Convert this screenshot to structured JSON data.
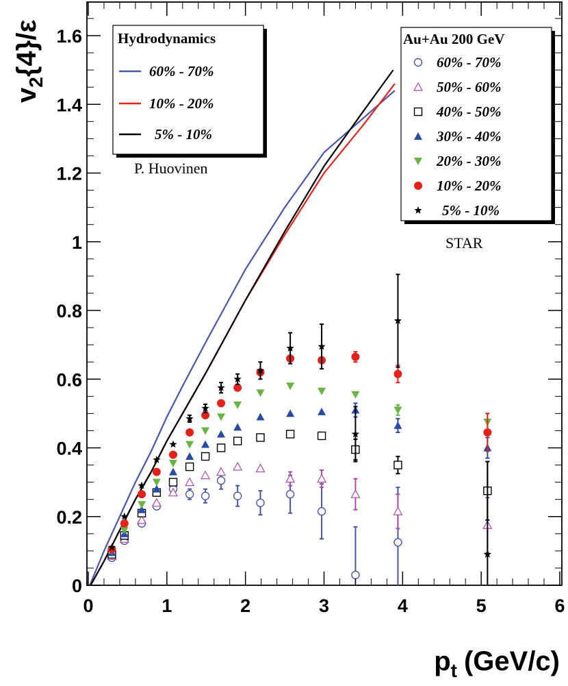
{
  "chart_data": {
    "type": "scatter",
    "xlabel": "p",
    "xlabel_sub": "t",
    "xlabel_units": "(GeV/c)",
    "ylabel_main": "v",
    "ylabel_sub": "2",
    "ylabel_rest": "{4}/ε",
    "xlim": [
      0,
      6
    ],
    "ylim": [
      0,
      1.7
    ],
    "x_ticks": [
      "0",
      "1",
      "2",
      "3",
      "4",
      "5",
      "6"
    ],
    "y_ticks": [
      "0",
      "0.2",
      "0.4",
      "0.6",
      "0.8",
      "1",
      "1.2",
      "1.4",
      "1.6"
    ],
    "grid": false,
    "legend_hydro": {
      "title": "Hydrodynamics",
      "placement": "top-left",
      "entries": [
        "60% - 70%",
        "10% - 20%",
        "5% - 10%"
      ]
    },
    "hydro_credit": "P. Huovinen",
    "legend_data": {
      "title": "Au+Au 200 GeV",
      "placement": "top-right",
      "entries": [
        "60% - 70%",
        "50% - 60%",
        "40% - 50%",
        "30% - 40%",
        "20% - 30%",
        "10% - 20%",
        "5% - 10%"
      ]
    },
    "data_credit": "STAR",
    "curves": [
      {
        "name": "60% - 70%",
        "color": "#4a55a8",
        "points": [
          [
            0.02,
            0
          ],
          [
            0.2,
            0.1
          ],
          [
            0.4,
            0.2
          ],
          [
            0.6,
            0.3
          ],
          [
            0.8,
            0.39
          ],
          [
            1.0,
            0.49
          ],
          [
            1.2,
            0.58
          ],
          [
            1.5,
            0.71
          ],
          [
            2.0,
            0.92
          ],
          [
            2.5,
            1.1
          ],
          [
            3.0,
            1.26
          ],
          [
            3.5,
            1.36
          ],
          [
            3.9,
            1.44
          ]
        ]
      },
      {
        "name": "10% - 20%",
        "color": "#e4221b",
        "points": [
          [
            0.03,
            0
          ],
          [
            0.2,
            0.07
          ],
          [
            0.4,
            0.16
          ],
          [
            0.6,
            0.25
          ],
          [
            0.8,
            0.33
          ],
          [
            1.0,
            0.42
          ],
          [
            1.2,
            0.5
          ],
          [
            1.5,
            0.62
          ],
          [
            2.0,
            0.83
          ],
          [
            2.5,
            1.02
          ],
          [
            3.0,
            1.2
          ],
          [
            3.5,
            1.34
          ],
          [
            3.9,
            1.46
          ]
        ]
      },
      {
        "name": "5% - 10%",
        "color": "#000000",
        "points": [
          [
            0.03,
            0
          ],
          [
            0.2,
            0.07
          ],
          [
            0.4,
            0.16
          ],
          [
            0.6,
            0.25
          ],
          [
            0.8,
            0.33
          ],
          [
            1.0,
            0.42
          ],
          [
            1.2,
            0.5
          ],
          [
            1.5,
            0.62
          ],
          [
            2.0,
            0.83
          ],
          [
            2.5,
            1.03
          ],
          [
            3.0,
            1.22
          ],
          [
            3.5,
            1.38
          ],
          [
            3.88,
            1.5
          ]
        ]
      }
    ],
    "series": [
      {
        "name": "60% - 70%",
        "marker": "open-circle",
        "color": "#4a55a8",
        "points": [
          {
            "x": 0.3,
            "y": 0.08
          },
          {
            "x": 0.46,
            "y": 0.13
          },
          {
            "x": 0.68,
            "y": 0.18
          },
          {
            "x": 0.87,
            "y": 0.23
          },
          {
            "x": 1.08,
            "y": 0.28
          },
          {
            "x": 1.29,
            "y": 0.265,
            "e": 0.015
          },
          {
            "x": 1.49,
            "y": 0.26,
            "e": 0.02
          },
          {
            "x": 1.69,
            "y": 0.305,
            "e": 0.025
          },
          {
            "x": 1.9,
            "y": 0.26,
            "e": 0.03
          },
          {
            "x": 2.19,
            "y": 0.24,
            "e": 0.035
          },
          {
            "x": 2.57,
            "y": 0.265,
            "e": 0.055
          },
          {
            "x": 2.97,
            "y": 0.215,
            "e": 0.08
          },
          {
            "x": 3.4,
            "y": 0.03,
            "e": 0.14
          },
          {
            "x": 3.94,
            "y": 0.125,
            "e": 0.16
          }
        ]
      },
      {
        "name": "50% - 60%",
        "marker": "open-triangle",
        "color": "#b04aa8",
        "points": [
          {
            "x": 0.3,
            "y": 0.085
          },
          {
            "x": 0.46,
            "y": 0.135
          },
          {
            "x": 0.68,
            "y": 0.19
          },
          {
            "x": 0.87,
            "y": 0.24
          },
          {
            "x": 1.08,
            "y": 0.27
          },
          {
            "x": 1.29,
            "y": 0.3
          },
          {
            "x": 1.49,
            "y": 0.32
          },
          {
            "x": 1.69,
            "y": 0.33
          },
          {
            "x": 1.9,
            "y": 0.345
          },
          {
            "x": 2.19,
            "y": 0.34
          },
          {
            "x": 2.57,
            "y": 0.31,
            "e": 0.02
          },
          {
            "x": 2.97,
            "y": 0.31,
            "e": 0.025
          },
          {
            "x": 3.4,
            "y": 0.265,
            "e": 0.045
          },
          {
            "x": 3.94,
            "y": 0.215,
            "e": 0.05
          },
          {
            "x": 5.08,
            "y": 0.175,
            "e": 0.08
          }
        ]
      },
      {
        "name": "40% - 50%",
        "marker": "open-square",
        "color": "#000000",
        "points": [
          {
            "x": 0.3,
            "y": 0.09
          },
          {
            "x": 0.46,
            "y": 0.145
          },
          {
            "x": 0.68,
            "y": 0.21
          },
          {
            "x": 0.87,
            "y": 0.27
          },
          {
            "x": 1.08,
            "y": 0.3
          },
          {
            "x": 1.29,
            "y": 0.345
          },
          {
            "x": 1.49,
            "y": 0.375
          },
          {
            "x": 1.69,
            "y": 0.4
          },
          {
            "x": 1.9,
            "y": 0.42
          },
          {
            "x": 2.19,
            "y": 0.43
          },
          {
            "x": 2.57,
            "y": 0.44
          },
          {
            "x": 2.97,
            "y": 0.435
          },
          {
            "x": 3.4,
            "y": 0.395,
            "e": 0.03
          },
          {
            "x": 3.94,
            "y": 0.35,
            "e": 0.025
          },
          {
            "x": 5.08,
            "y": 0.275,
            "e": 0.085
          }
        ]
      },
      {
        "name": "30% - 40%",
        "marker": "filled-triangle",
        "color": "#2a4aa8",
        "points": [
          {
            "x": 0.3,
            "y": 0.095
          },
          {
            "x": 0.46,
            "y": 0.15
          },
          {
            "x": 0.68,
            "y": 0.22
          },
          {
            "x": 0.87,
            "y": 0.28
          },
          {
            "x": 1.08,
            "y": 0.33
          },
          {
            "x": 1.29,
            "y": 0.375
          },
          {
            "x": 1.49,
            "y": 0.41
          },
          {
            "x": 1.69,
            "y": 0.44
          },
          {
            "x": 1.9,
            "y": 0.46
          },
          {
            "x": 2.19,
            "y": 0.49
          },
          {
            "x": 2.57,
            "y": 0.5
          },
          {
            "x": 2.97,
            "y": 0.505
          },
          {
            "x": 3.4,
            "y": 0.51,
            "e": 0.02
          },
          {
            "x": 3.94,
            "y": 0.465,
            "e": 0.02
          },
          {
            "x": 5.08,
            "y": 0.4,
            "e": 0.03
          }
        ]
      },
      {
        "name": "20% - 30%",
        "marker": "filled-down-triangle",
        "color": "#6ab444",
        "points": [
          {
            "x": 0.3,
            "y": 0.1
          },
          {
            "x": 0.46,
            "y": 0.16
          },
          {
            "x": 0.68,
            "y": 0.235
          },
          {
            "x": 0.87,
            "y": 0.3
          },
          {
            "x": 1.08,
            "y": 0.355
          },
          {
            "x": 1.29,
            "y": 0.41
          },
          {
            "x": 1.49,
            "y": 0.45
          },
          {
            "x": 1.69,
            "y": 0.49
          },
          {
            "x": 1.9,
            "y": 0.525
          },
          {
            "x": 2.19,
            "y": 0.56
          },
          {
            "x": 2.57,
            "y": 0.58
          },
          {
            "x": 2.97,
            "y": 0.565
          },
          {
            "x": 3.4,
            "y": 0.555
          },
          {
            "x": 3.94,
            "y": 0.51,
            "e": 0.015
          },
          {
            "x": 5.08,
            "y": 0.475,
            "e": 0.025
          }
        ]
      },
      {
        "name": "10% - 20%",
        "marker": "filled-circle",
        "color": "#e4221b",
        "points": [
          {
            "x": 0.3,
            "y": 0.105
          },
          {
            "x": 0.46,
            "y": 0.18
          },
          {
            "x": 0.68,
            "y": 0.265
          },
          {
            "x": 0.87,
            "y": 0.33
          },
          {
            "x": 1.08,
            "y": 0.38
          },
          {
            "x": 1.29,
            "y": 0.445
          },
          {
            "x": 1.49,
            "y": 0.495
          },
          {
            "x": 1.69,
            "y": 0.53
          },
          {
            "x": 1.9,
            "y": 0.575
          },
          {
            "x": 2.19,
            "y": 0.62
          },
          {
            "x": 2.57,
            "y": 0.66
          },
          {
            "x": 2.97,
            "y": 0.655
          },
          {
            "x": 3.4,
            "y": 0.665,
            "e": 0.015
          },
          {
            "x": 3.94,
            "y": 0.615,
            "e": 0.025
          },
          {
            "x": 5.08,
            "y": 0.445,
            "e": 0.055
          }
        ]
      },
      {
        "name": "5% - 10%",
        "marker": "star",
        "color": "#000000",
        "points": [
          {
            "x": 0.3,
            "y": 0.11
          },
          {
            "x": 0.46,
            "y": 0.2
          },
          {
            "x": 0.68,
            "y": 0.29
          },
          {
            "x": 0.87,
            "y": 0.365
          },
          {
            "x": 1.08,
            "y": 0.41
          },
          {
            "x": 1.29,
            "y": 0.485,
            "e": 0.01
          },
          {
            "x": 1.49,
            "y": 0.515,
            "e": 0.012
          },
          {
            "x": 1.69,
            "y": 0.575,
            "e": 0.015
          },
          {
            "x": 1.9,
            "y": 0.6,
            "e": 0.015
          },
          {
            "x": 2.19,
            "y": 0.625,
            "e": 0.025
          },
          {
            "x": 2.57,
            "y": 0.69,
            "e": 0.045
          },
          {
            "x": 2.97,
            "y": 0.695,
            "e": 0.065
          },
          {
            "x": 3.4,
            "y": 0.44,
            "e": 0.08
          },
          {
            "x": 3.94,
            "y": 0.77,
            "e": 0.135
          },
          {
            "x": 5.08,
            "y": 0.09,
            "e": 0.27
          }
        ]
      }
    ]
  }
}
